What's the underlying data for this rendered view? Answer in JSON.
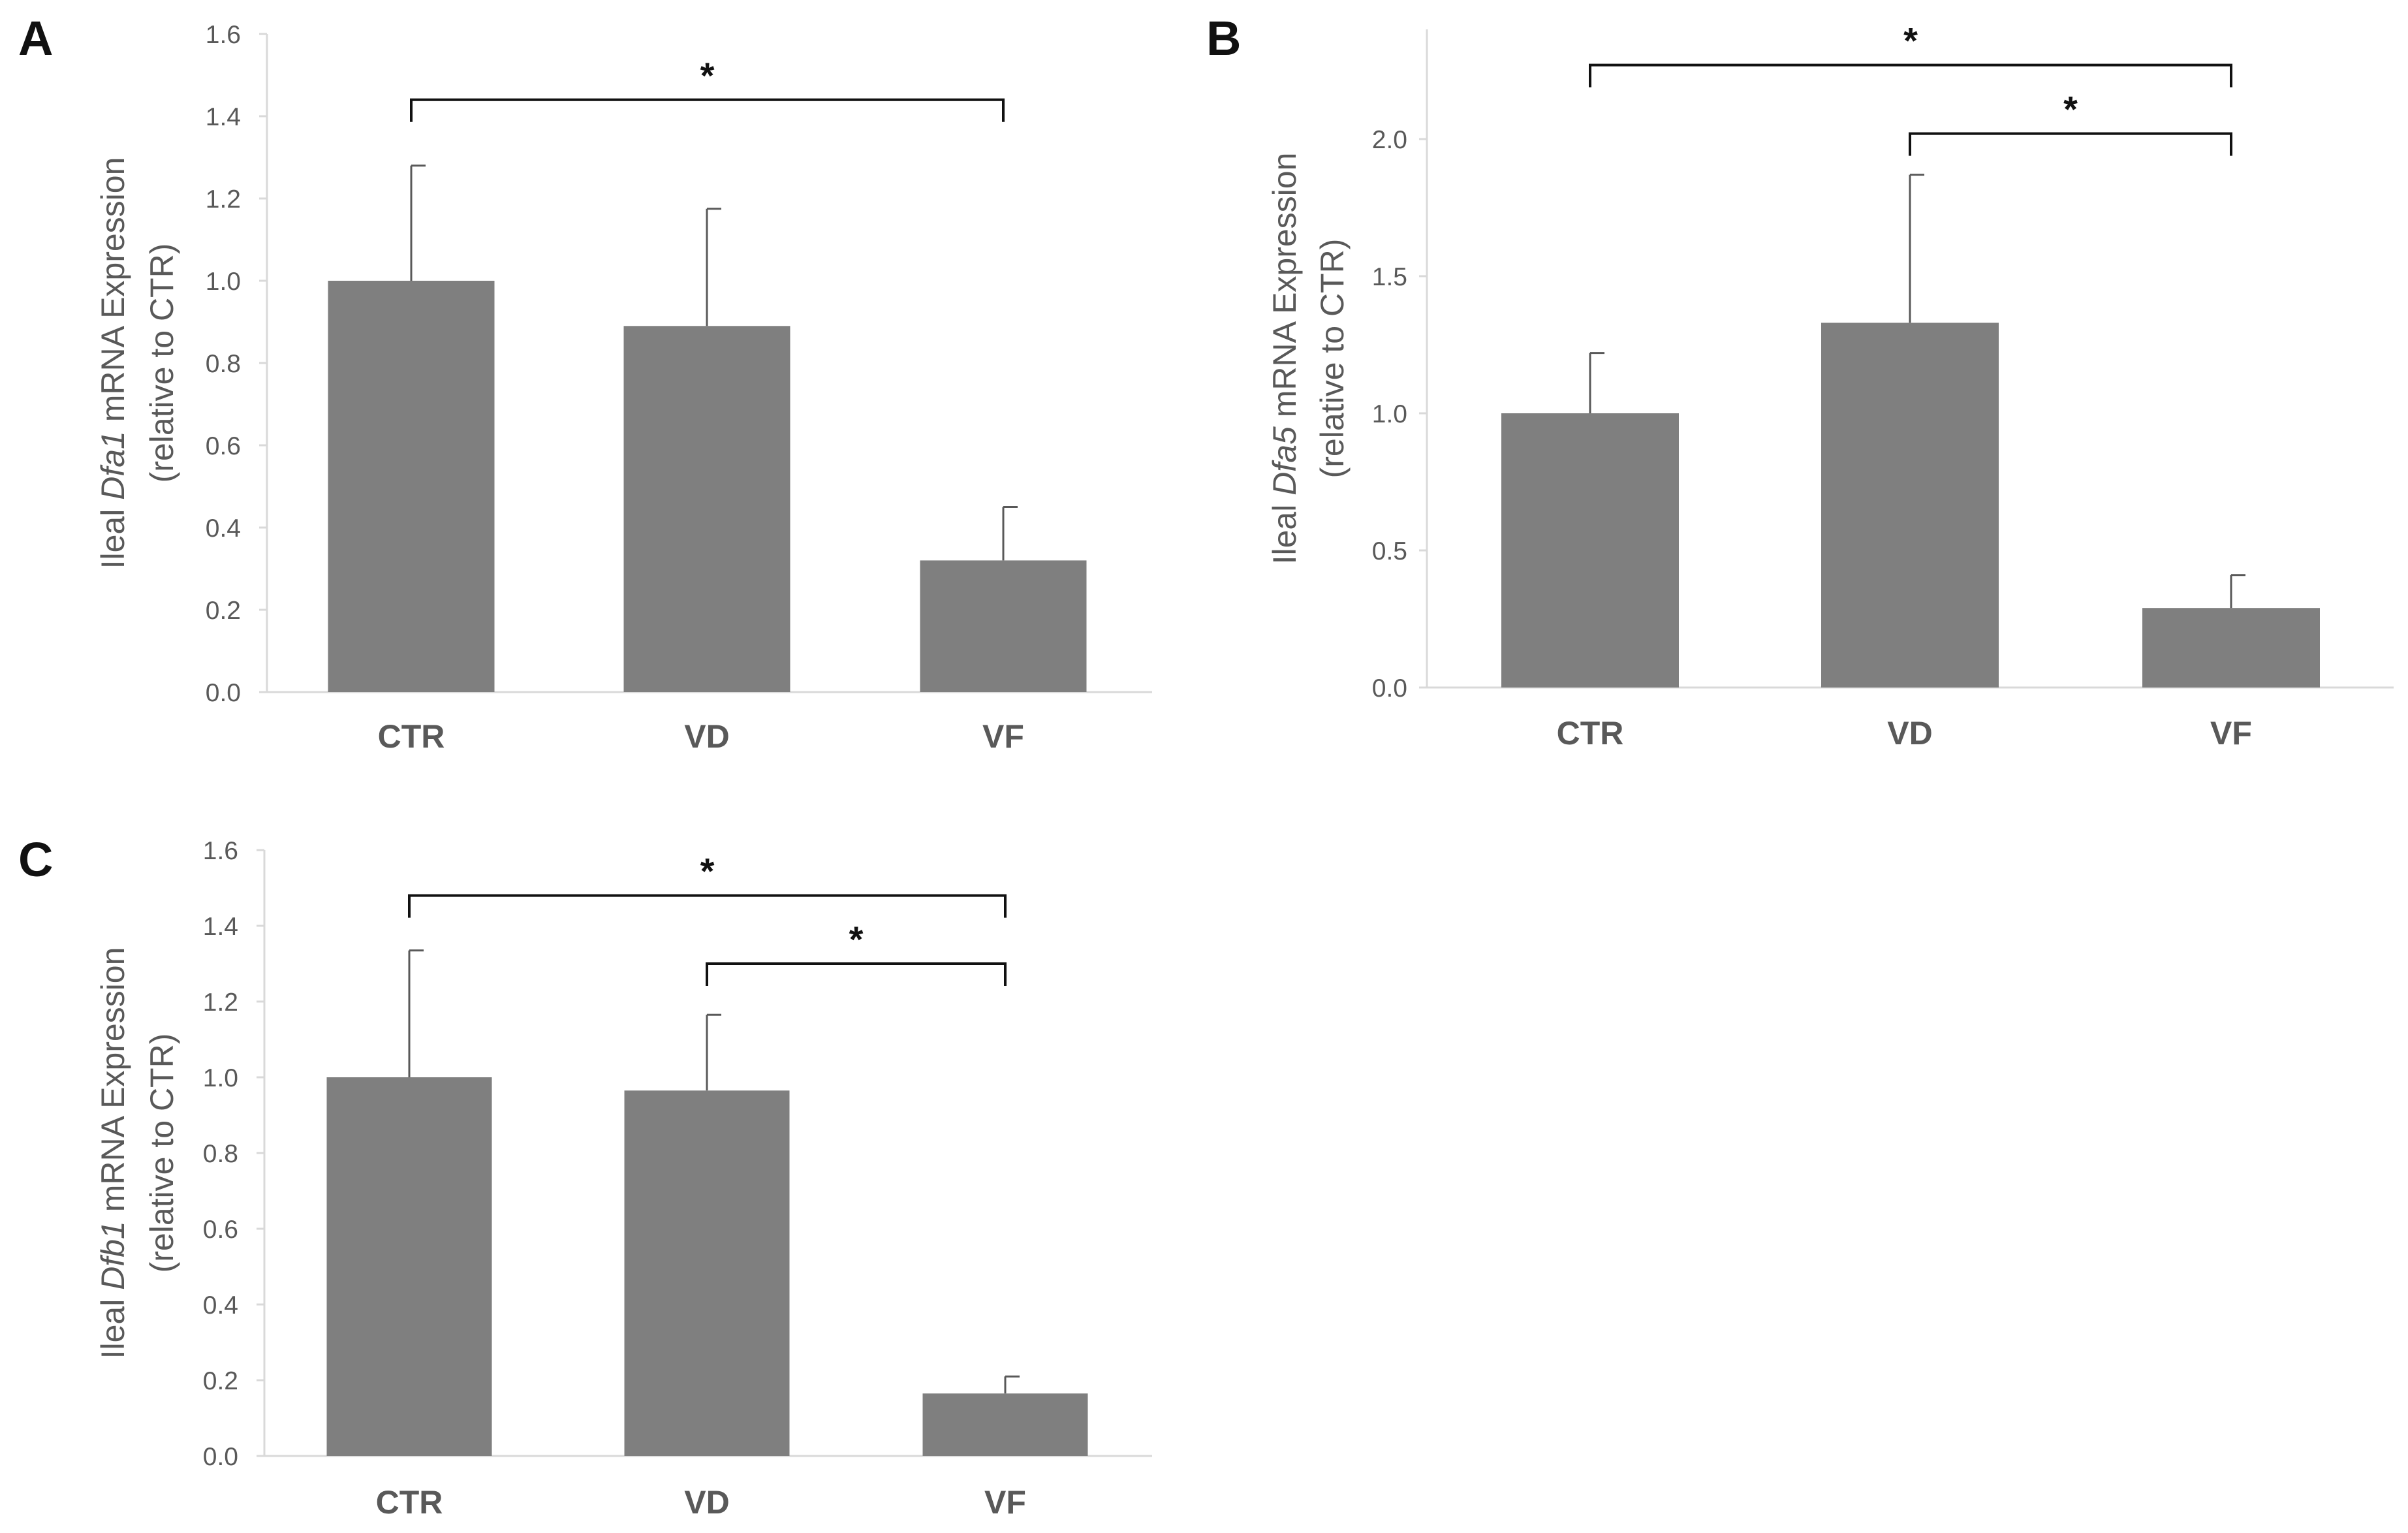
{
  "chart_data": [
    {
      "type": "bar",
      "panel": "A",
      "gene": "Dfa1",
      "ylabel_pre": "Ileal ",
      "ylabel_gene": "Dfa1",
      "ylabel_post": " mRNA Expression",
      "ylabel_line2": "(relative to CTR)",
      "categories": [
        "CTR",
        "VD",
        "VF"
      ],
      "values": [
        1.0,
        0.89,
        0.32
      ],
      "errors": [
        0.28,
        0.285,
        0.13
      ],
      "ylim": [
        0,
        1.6
      ],
      "yticks": [
        0.0,
        0.2,
        0.4,
        0.6,
        0.8,
        1.0,
        1.2,
        1.4,
        1.6
      ],
      "ytick_labels": [
        "0.0",
        "0.2",
        "0.4",
        "0.6",
        "0.8",
        "1.0",
        "1.2",
        "1.4",
        "1.6"
      ],
      "significance": [
        {
          "from": "CTR",
          "to": "VF",
          "label": "*",
          "level": 1.44
        }
      ]
    },
    {
      "type": "bar",
      "panel": "B",
      "gene": "Dfa5",
      "ylabel_pre": "Ileal ",
      "ylabel_gene": "Dfa5",
      "ylabel_post": " mRNA Expression",
      "ylabel_line2": "(relative to CTR)",
      "categories": [
        "CTR",
        "VD",
        "VF"
      ],
      "values": [
        1.0,
        1.33,
        0.29
      ],
      "errors": [
        0.22,
        0.54,
        0.12
      ],
      "ylim": [
        0,
        2.4
      ],
      "yticks": [
        0.0,
        0.5,
        1.0,
        1.5,
        2.0
      ],
      "ytick_labels": [
        "0.0",
        "0.5",
        "1.0",
        "1.5",
        "2.0"
      ],
      "significance": [
        {
          "from": "CTR",
          "to": "VF",
          "label": "*",
          "level": 2.27
        },
        {
          "from": "VD",
          "to": "VF",
          "label": "*",
          "level": 2.02
        }
      ]
    },
    {
      "type": "bar",
      "panel": "C",
      "gene": "Dfb1",
      "ylabel_pre": "Ileal ",
      "ylabel_gene": "Dfb1",
      "ylabel_post": " mRNA Expression",
      "ylabel_line2": "(relative to CTR)",
      "categories": [
        "CTR",
        "VD",
        "VF"
      ],
      "values": [
        1.0,
        0.965,
        0.165
      ],
      "errors": [
        0.335,
        0.2,
        0.045
      ],
      "ylim": [
        0,
        1.6
      ],
      "yticks": [
        0.0,
        0.2,
        0.4,
        0.6,
        0.8,
        1.0,
        1.2,
        1.4,
        1.6
      ],
      "ytick_labels": [
        "0.0",
        "0.2",
        "0.4",
        "0.6",
        "0.8",
        "1.0",
        "1.2",
        "1.4",
        "1.6"
      ],
      "significance": [
        {
          "from": "CTR",
          "to": "VF",
          "label": "*",
          "level": 1.48
        },
        {
          "from": "VD",
          "to": "VF",
          "label": "*",
          "level": 1.3
        }
      ]
    }
  ],
  "colors": {
    "bar": "#7f7f7f",
    "axis": "#d9d9d9",
    "text": "#595959"
  }
}
